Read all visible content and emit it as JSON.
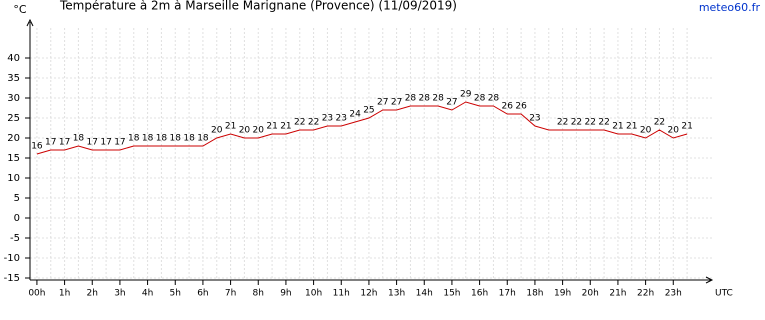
{
  "chart_data": {
    "type": "line",
    "title": "Température à 2m à Marseille Marignane (Provence) (11/09/2019)",
    "y_label": "°C",
    "x_label": "UTC",
    "source": "meteo60.fr",
    "x": [
      0,
      0.5,
      1,
      1.5,
      2,
      2.5,
      3,
      3.5,
      4,
      4.5,
      5,
      5.5,
      6,
      6.5,
      7,
      7.5,
      8,
      8.5,
      9,
      9.5,
      10,
      10.5,
      11,
      11.5,
      12,
      12.5,
      13,
      13.5,
      14,
      14.5,
      15,
      15.5,
      16,
      16.5,
      17,
      17.5,
      18,
      18.5,
      19,
      19.5,
      20,
      20.5,
      21,
      21.5,
      22,
      22.5,
      23,
      23.5
    ],
    "series": [
      {
        "name": "Température",
        "color": "#cc0000",
        "values": [
          16,
          17,
          17,
          18,
          17,
          17,
          17,
          18,
          18,
          18,
          18,
          18,
          18,
          20,
          21,
          20,
          20,
          21,
          21,
          22,
          22,
          23,
          23,
          24,
          25,
          27,
          27,
          28,
          28,
          28,
          27,
          29,
          28,
          28,
          26,
          26,
          23,
          22,
          22,
          22,
          22,
          22,
          21,
          21,
          20,
          22,
          20,
          21
        ],
        "value_labels": [
          "16",
          "17",
          "17",
          "18",
          "17",
          "17",
          "17",
          "18",
          "18",
          "18",
          "18",
          "18",
          "18",
          "20",
          "21",
          "20",
          "20",
          "21",
          "21",
          "22",
          "22",
          "23",
          "23",
          "24",
          "25",
          "27",
          "27",
          "28",
          "28",
          "28",
          "27",
          "29",
          "28",
          "28",
          "26",
          "26",
          "23",
          null,
          "22",
          "22",
          "22",
          "22",
          "21",
          "21",
          "20",
          "22",
          "20",
          "21"
        ]
      }
    ],
    "xlim": [
      -0.25,
      24.4
    ],
    "ylim": [
      -15.5,
      47.5
    ],
    "xticks": [
      {
        "value": 0,
        "label": "00h"
      },
      {
        "value": 1,
        "label": "1h"
      },
      {
        "value": 2,
        "label": "2h"
      },
      {
        "value": 3,
        "label": "3h"
      },
      {
        "value": 4,
        "label": "4h"
      },
      {
        "value": 5,
        "label": "5h"
      },
      {
        "value": 6,
        "label": "6h"
      },
      {
        "value": 7,
        "label": "7h"
      },
      {
        "value": 8,
        "label": "8h"
      },
      {
        "value": 9,
        "label": "9h"
      },
      {
        "value": 10,
        "label": "10h"
      },
      {
        "value": 11,
        "label": "11h"
      },
      {
        "value": 12,
        "label": "12h"
      },
      {
        "value": 13,
        "label": "13h"
      },
      {
        "value": 14,
        "label": "14h"
      },
      {
        "value": 15,
        "label": "15h"
      },
      {
        "value": 16,
        "label": "16h"
      },
      {
        "value": 17,
        "label": "17h"
      },
      {
        "value": 18,
        "label": "18h"
      },
      {
        "value": 19,
        "label": "19h"
      },
      {
        "value": 20,
        "label": "20h"
      },
      {
        "value": 21,
        "label": "21h"
      },
      {
        "value": 22,
        "label": "22h"
      },
      {
        "value": 23,
        "label": "23h"
      }
    ],
    "yticks": [
      -15,
      -10,
      -5,
      0,
      5,
      10,
      15,
      20,
      25,
      30,
      35,
      40
    ],
    "grid": true
  }
}
